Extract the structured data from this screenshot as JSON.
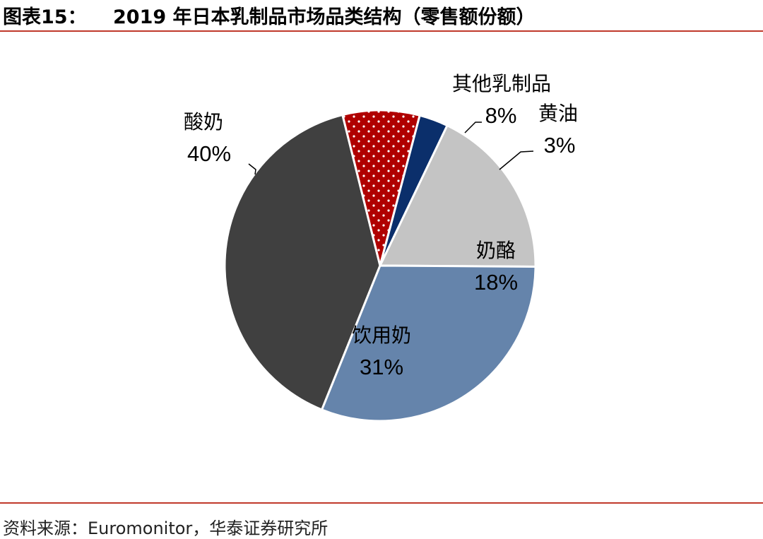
{
  "figure": {
    "label": "图表15：",
    "title": "2019 年日本乳制品市场品类结构（零售额份额）",
    "source": "资料来源：Euromonitor，华泰证券研究所"
  },
  "colors": {
    "rule": "#c0392b",
    "酸奶": "#404040",
    "其他乳制品": "#b00000",
    "黄油": "#0b2f6b",
    "奶酪": "#c4c4c4",
    "饮用奶": "#6584ab"
  },
  "chart_data": {
    "type": "pie",
    "title": "2019 年日本乳制品市场品类结构（零售额份额）",
    "unit": "%",
    "slices": [
      {
        "label": "酸奶",
        "value": 40,
        "value_label": "40%",
        "color": "#404040"
      },
      {
        "label": "其他乳制品",
        "value": 8,
        "value_label": "8%",
        "color": "#b00000",
        "pattern": "white-dots"
      },
      {
        "label": "黄油",
        "value": 3,
        "value_label": "3%",
        "color": "#0b2f6b"
      },
      {
        "label": "奶酪",
        "value": 18,
        "value_label": "18%",
        "color": "#c4c4c4"
      },
      {
        "label": "饮用奶",
        "value": 31,
        "value_label": "31%",
        "color": "#6584ab"
      }
    ]
  }
}
